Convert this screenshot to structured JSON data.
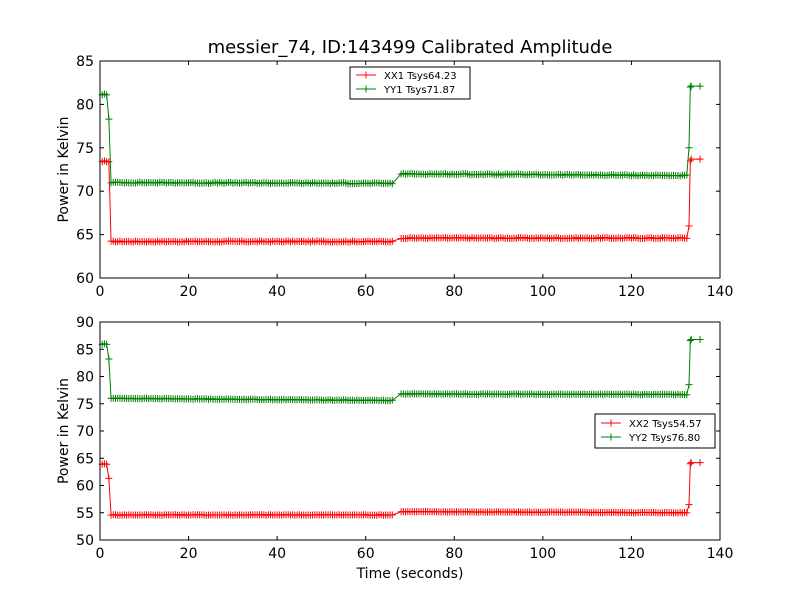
{
  "title": "messier_74, ID:143499 Calibrated Amplitude",
  "chart_data": [
    {
      "type": "line",
      "ylabel": "Power in Kelvin",
      "xlabel": "",
      "xlim": [
        0,
        140
      ],
      "ylim": [
        60,
        85
      ],
      "x_ticks": [
        0,
        20,
        40,
        60,
        80,
        100,
        120,
        140
      ],
      "y_ticks": [
        60,
        65,
        70,
        75,
        80,
        85
      ],
      "grid": false,
      "legend_position": "top-center",
      "series": [
        {
          "name": "XX1 Tsys64.23",
          "color": "#ff0000",
          "segments": [
            {
              "x": [
                0.5,
                1.0,
                1.5,
                2.0
              ],
              "y": [
                73.4,
                73.5,
                73.4,
                73.4
              ]
            },
            {
              "x": [
                2.5,
                66
              ],
              "y": [
                64.2,
                64.2
              ]
            },
            {
              "x": [
                68,
                132.5
              ],
              "y": [
                64.6,
                64.6
              ]
            },
            {
              "x": [
                133.0,
                133.3
              ],
              "y": [
                66.0,
                73.5
              ]
            },
            {
              "x": [
                133.5,
                135.5
              ],
              "y": [
                73.7,
                73.7
              ]
            }
          ]
        },
        {
          "name": "YY1 Tsys71.87",
          "color": "#008000",
          "segments": [
            {
              "x": [
                0.5,
                1.0,
                1.5,
                2.0
              ],
              "y": [
                81.1,
                81.2,
                81.1,
                78.3
              ]
            },
            {
              "x": [
                2.5,
                66
              ],
              "y": [
                71.0,
                70.9
              ]
            },
            {
              "x": [
                68,
                132.5
              ],
              "y": [
                72.0,
                71.8
              ]
            },
            {
              "x": [
                133.0,
                133.3
              ],
              "y": [
                75.0,
                82.0
              ]
            },
            {
              "x": [
                133.5,
                135.5
              ],
              "y": [
                82.1,
                82.1
              ]
            }
          ]
        }
      ]
    },
    {
      "type": "line",
      "ylabel": "Power in Kelvin",
      "xlabel": "Time (seconds)",
      "xlim": [
        0,
        140
      ],
      "ylim": [
        50,
        90
      ],
      "x_ticks": [
        0,
        20,
        40,
        60,
        80,
        100,
        120,
        140
      ],
      "y_ticks": [
        50,
        55,
        60,
        65,
        70,
        75,
        80,
        85,
        90
      ],
      "grid": false,
      "legend_position": "center-right",
      "series": [
        {
          "name": "XX2 Tsys54.57",
          "color": "#ff0000",
          "segments": [
            {
              "x": [
                0.5,
                1.0,
                1.5,
                2.0
              ],
              "y": [
                63.9,
                64.0,
                63.9,
                61.3
              ]
            },
            {
              "x": [
                2.5,
                66
              ],
              "y": [
                54.6,
                54.6
              ]
            },
            {
              "x": [
                68,
                132.5
              ],
              "y": [
                55.2,
                55.0
              ]
            },
            {
              "x": [
                133.0,
                133.3
              ],
              "y": [
                56.5,
                64.0
              ]
            },
            {
              "x": [
                133.5,
                135.5
              ],
              "y": [
                64.2,
                64.2
              ]
            }
          ]
        },
        {
          "name": "YY2 Tsys76.80",
          "color": "#008000",
          "segments": [
            {
              "x": [
                0.5,
                1.0,
                1.5,
                2.0
              ],
              "y": [
                85.9,
                86.0,
                85.9,
                83.2
              ]
            },
            {
              "x": [
                2.5,
                66
              ],
              "y": [
                76.0,
                75.6
              ]
            },
            {
              "x": [
                68,
                132.5
              ],
              "y": [
                76.8,
                76.7
              ]
            },
            {
              "x": [
                133.0,
                133.3
              ],
              "y": [
                78.5,
                86.6
              ]
            },
            {
              "x": [
                133.5,
                135.5
              ],
              "y": [
                86.8,
                86.8
              ]
            }
          ]
        }
      ]
    }
  ]
}
